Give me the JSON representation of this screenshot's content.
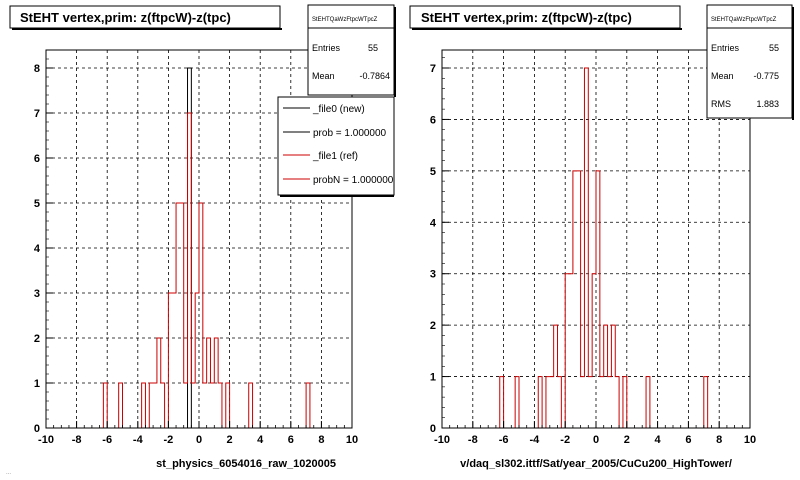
{
  "chart_data": [
    {
      "type": "histogram",
      "title": "StEHT  vertex,prim: z(ftpcW)-z(tpc)",
      "xlabel": "st_physics_6054016_raw_1020005",
      "xlim": [
        -10,
        10
      ],
      "ylim": [
        0,
        8.4
      ],
      "x_ticks": [
        "-10",
        "-8",
        "-6",
        "-4",
        "-2",
        "0",
        "2",
        "4",
        "6",
        "8",
        "10"
      ],
      "y_ticks": [
        "0",
        "1",
        "2",
        "3",
        "4",
        "5",
        "6",
        "7",
        "8"
      ],
      "grid": true,
      "bin_width": 0.25,
      "series": [
        {
          "name": "_file0 (new)",
          "color": "#000000",
          "bins": [
            [
              -0.75,
              8
            ]
          ]
        },
        {
          "name": "_file1 (ref)",
          "color": "#cc0000",
          "bins": [
            [
              -6.25,
              1
            ],
            [
              -5.25,
              1
            ],
            [
              -3.75,
              1
            ],
            [
              -3.25,
              1
            ],
            [
              -3.0,
              1
            ],
            [
              -2.75,
              2
            ],
            [
              -2.5,
              1
            ],
            [
              -2.0,
              3
            ],
            [
              -1.75,
              3
            ],
            [
              -1.5,
              5
            ],
            [
              -1.25,
              5
            ],
            [
              -1.0,
              1
            ],
            [
              -0.75,
              7
            ],
            [
              -0.5,
              1
            ],
            [
              -0.25,
              3
            ],
            [
              0.0,
              5
            ],
            [
              0.25,
              1
            ],
            [
              0.5,
              2
            ],
            [
              0.75,
              1
            ],
            [
              1.0,
              2
            ],
            [
              1.25,
              1
            ],
            [
              1.75,
              1
            ],
            [
              3.25,
              1
            ],
            [
              7.0,
              1
            ]
          ]
        }
      ],
      "stats": {
        "header": "StEHTQaWzFtpcWTpcZ",
        "entries_label": "Entries",
        "entries": "55",
        "mean_label": "Mean",
        "mean": "-0.7864"
      },
      "legend": {
        "placement": "top-right",
        "entries": [
          "_file0 (new)",
          "prob = 1.000000",
          "_file1 (ref)",
          "probN = 1.000000"
        ]
      }
    },
    {
      "type": "histogram",
      "title": "StEHT  vertex,prim: z(ftpcW)-z(tpc)",
      "xlabel": "v/daq_sl302.ittf/Sat/year_2005/CuCu200_HighTower/",
      "xlim": [
        -10,
        10
      ],
      "ylim": [
        0,
        7.35
      ],
      "x_ticks": [
        "-10",
        "-8",
        "-6",
        "-4",
        "-2",
        "0",
        "2",
        "4",
        "6",
        "8",
        "10"
      ],
      "y_ticks": [
        "0",
        "1",
        "2",
        "3",
        "4",
        "5",
        "6",
        "7"
      ],
      "grid": true,
      "bin_width": 0.25,
      "series": [
        {
          "name": "_file1 (ref)",
          "color": "#cc0000",
          "bins": [
            [
              -6.25,
              1
            ],
            [
              -5.25,
              1
            ],
            [
              -3.75,
              1
            ],
            [
              -3.25,
              1
            ],
            [
              -3.0,
              1
            ],
            [
              -2.75,
              2
            ],
            [
              -2.5,
              1
            ],
            [
              -2.0,
              3
            ],
            [
              -1.75,
              3
            ],
            [
              -1.5,
              5
            ],
            [
              -1.25,
              5
            ],
            [
              -1.0,
              1
            ],
            [
              -0.75,
              7
            ],
            [
              -0.5,
              1
            ],
            [
              -0.25,
              3
            ],
            [
              0.0,
              5
            ],
            [
              0.25,
              1
            ],
            [
              0.5,
              2
            ],
            [
              0.75,
              1
            ],
            [
              1.0,
              2
            ],
            [
              1.25,
              1
            ],
            [
              1.75,
              1
            ],
            [
              3.25,
              1
            ],
            [
              7.0,
              1
            ]
          ]
        }
      ],
      "stats": {
        "header": "StEHTQaWzFtpcWTpcZ",
        "entries_label": "Entries",
        "entries": "55",
        "mean_label": "Mean",
        "mean": "-0.775",
        "rms_label": "RMS",
        "rms": "1.883"
      }
    }
  ],
  "footer_text": "..."
}
